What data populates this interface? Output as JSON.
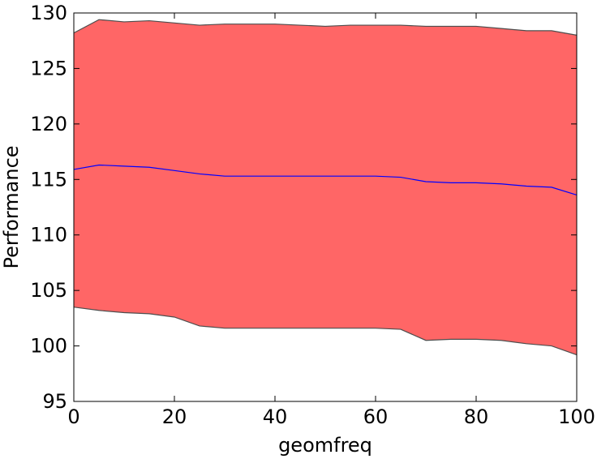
{
  "chart_data": {
    "type": "area",
    "title": "",
    "xlabel": "geomfreq",
    "ylabel": "Performance",
    "xlim": [
      0,
      100
    ],
    "ylim": [
      95,
      130
    ],
    "xticks": [
      0,
      20,
      40,
      60,
      80,
      100
    ],
    "yticks": [
      95,
      100,
      105,
      110,
      115,
      120,
      125,
      130
    ],
    "grid": false,
    "legend": "none",
    "colors": {
      "band_fill": "#ff6666",
      "band_edge": "#4d4d4d",
      "mean_line": "#0000ff"
    },
    "x": [
      0,
      5,
      10,
      15,
      20,
      25,
      30,
      35,
      40,
      45,
      50,
      55,
      60,
      65,
      70,
      75,
      80,
      85,
      90,
      95,
      100
    ],
    "series": [
      {
        "role": "upper",
        "values": [
          128.2,
          129.4,
          129.2,
          129.3,
          129.1,
          128.9,
          129.0,
          129.0,
          129.0,
          128.9,
          128.8,
          128.9,
          128.9,
          128.9,
          128.8,
          128.8,
          128.8,
          128.6,
          128.4,
          128.4,
          128.0
        ]
      },
      {
        "role": "mean",
        "values": [
          115.9,
          116.3,
          116.2,
          116.1,
          115.8,
          115.5,
          115.3,
          115.3,
          115.3,
          115.3,
          115.3,
          115.3,
          115.3,
          115.2,
          114.8,
          114.7,
          114.7,
          114.6,
          114.4,
          114.3,
          113.6
        ]
      },
      {
        "role": "lower",
        "values": [
          103.5,
          103.2,
          103.0,
          102.9,
          102.6,
          101.8,
          101.6,
          101.6,
          101.6,
          101.6,
          101.6,
          101.6,
          101.6,
          101.5,
          100.5,
          100.6,
          100.6,
          100.5,
          100.2,
          100.0,
          99.2
        ]
      }
    ]
  }
}
